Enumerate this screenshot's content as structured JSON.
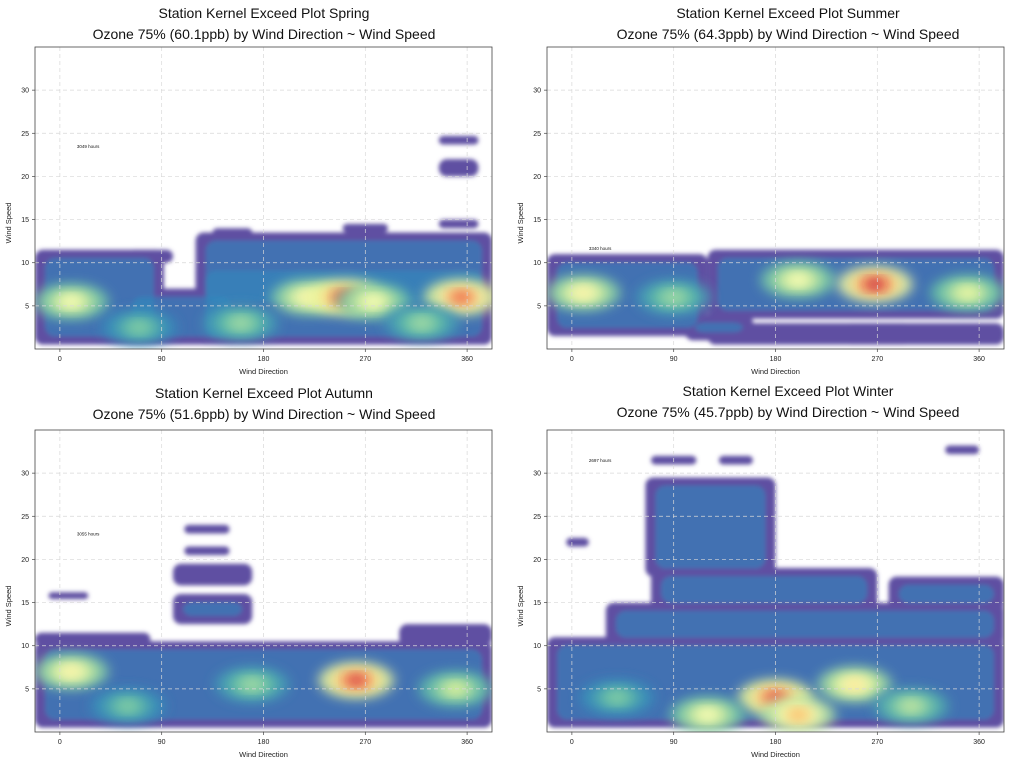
{
  "chart_data": [
    {
      "type": "heatmap",
      "title": "Station Kernel Exceed Plot Spring",
      "subtitle": "Ozone 75% (60.1ppb) by Wind Direction ~ Wind Speed",
      "xlabel": "Wind Direction",
      "ylabel": "Wind Speed",
      "xlim": [
        -22,
        382
      ],
      "ylim": [
        0,
        35
      ],
      "xticks": [
        0,
        90,
        180,
        270,
        360
      ],
      "yticks": [
        5,
        10,
        15,
        20,
        25,
        30
      ],
      "grid": true,
      "annotation": "3049 hours",
      "annotation_pos": [
        15,
        23.3
      ],
      "colorscale": [
        "#5e4fa2",
        "#3288bd",
        "#66c2a5",
        "#abdda4",
        "#e6f598",
        "#ffffbf",
        "#fee08b",
        "#fdae61",
        "#f46d43",
        "#d53e4f",
        "#9e0142"
      ],
      "coverage": [
        {
          "x": [
            -22,
            92
          ],
          "y": [
            0.5,
            11.5
          ]
        },
        {
          "x": [
            55,
            160
          ],
          "y": [
            0.5,
            7
          ]
        },
        {
          "x": [
            120,
            382
          ],
          "y": [
            0.5,
            10
          ]
        },
        {
          "x": [
            120,
            382
          ],
          "y": [
            4.5,
            13.5
          ]
        },
        {
          "x": [
            60,
            100
          ],
          "y": [
            10,
            11.5
          ]
        },
        {
          "x": [
            135,
            170
          ],
          "y": [
            13,
            14
          ]
        },
        {
          "x": [
            250,
            290
          ],
          "y": [
            13.5,
            14.5
          ]
        },
        {
          "x": [
            335,
            370
          ],
          "y": [
            14,
            15
          ]
        },
        {
          "x": [
            335,
            370
          ],
          "y": [
            20,
            22
          ]
        },
        {
          "x": [
            335,
            370
          ],
          "y": [
            23.7,
            24.7
          ]
        }
      ],
      "hotspots": [
        {
          "x": 10,
          "y": 5.5,
          "value": 0.5
        },
        {
          "x": 220,
          "y": 6,
          "value": 0.55
        },
        {
          "x": 252,
          "y": 6,
          "value": 0.92
        },
        {
          "x": 277,
          "y": 5.5,
          "value": 0.5
        },
        {
          "x": 355,
          "y": 6,
          "value": 0.85
        },
        {
          "x": 160,
          "y": 3,
          "value": 0.3
        },
        {
          "x": 320,
          "y": 3,
          "value": 0.3
        },
        {
          "x": 70,
          "y": 2.5,
          "value": 0.25
        }
      ]
    },
    {
      "type": "heatmap",
      "title": "Station Kernel Exceed Plot Summer",
      "subtitle": "Ozone 75% (64.3ppb) by Wind Direction ~ Wind Speed",
      "xlabel": "Wind Direction",
      "ylabel": "Wind Speed",
      "xlim": [
        -22,
        382
      ],
      "ylim": [
        0,
        35
      ],
      "xticks": [
        0,
        90,
        180,
        270,
        360
      ],
      "yticks": [
        5,
        10,
        15,
        20,
        25,
        30
      ],
      "grid": true,
      "annotation": "3340 hours",
      "annotation_pos": [
        15,
        11.5
      ],
      "colorscale": [
        "#5e4fa2",
        "#3288bd",
        "#66c2a5",
        "#abdda4",
        "#e6f598",
        "#ffffbf",
        "#fee08b",
        "#fdae61",
        "#f46d43",
        "#d53e4f",
        "#9e0142"
      ],
      "coverage": [
        {
          "x": [
            -22,
            120
          ],
          "y": [
            1.5,
            11
          ]
        },
        {
          "x": [
            120,
            382
          ],
          "y": [
            3.5,
            11.5
          ]
        },
        {
          "x": [
            120,
            382
          ],
          "y": [
            0.5,
            3
          ]
        },
        {
          "x": [
            100,
            160
          ],
          "y": [
            1,
            4
          ]
        },
        {
          "x": [
            240,
            300
          ],
          "y": [
            0.5,
            3
          ]
        }
      ],
      "hotspots": [
        {
          "x": 10,
          "y": 6.5,
          "value": 0.55
        },
        {
          "x": 200,
          "y": 8,
          "value": 0.5
        },
        {
          "x": 268,
          "y": 7.5,
          "value": 0.95
        },
        {
          "x": 350,
          "y": 6.5,
          "value": 0.45
        },
        {
          "x": 90,
          "y": 6,
          "value": 0.3
        }
      ]
    },
    {
      "type": "heatmap",
      "title": "Station Kernel Exceed Plot Autumn",
      "subtitle": "Ozone 75% (51.6ppb) by Wind Direction ~ Wind Speed",
      "xlabel": "Wind Direction",
      "ylabel": "Wind Speed",
      "xlim": [
        -22,
        382
      ],
      "ylim": [
        0,
        35
      ],
      "xticks": [
        0,
        90,
        180,
        270,
        360
      ],
      "yticks": [
        5,
        10,
        15,
        20,
        25,
        30
      ],
      "grid": true,
      "annotation": "3055 hours",
      "annotation_pos": [
        15,
        22.8
      ],
      "colorscale": [
        "#5e4fa2",
        "#3288bd",
        "#66c2a5",
        "#abdda4",
        "#e6f598",
        "#ffffbf",
        "#fee08b",
        "#fdae61",
        "#f46d43",
        "#d53e4f",
        "#9e0142"
      ],
      "coverage": [
        {
          "x": [
            -22,
            382
          ],
          "y": [
            0.5,
            10.5
          ]
        },
        {
          "x": [
            -22,
            80
          ],
          "y": [
            10,
            11.5
          ]
        },
        {
          "x": [
            300,
            382
          ],
          "y": [
            10,
            12.5
          ]
        },
        {
          "x": [
            100,
            170
          ],
          "y": [
            12.5,
            16
          ]
        },
        {
          "x": [
            100,
            170
          ],
          "y": [
            17,
            19.5
          ]
        },
        {
          "x": [
            110,
            150
          ],
          "y": [
            20.5,
            21.5
          ]
        },
        {
          "x": [
            110,
            150
          ],
          "y": [
            23,
            24
          ]
        },
        {
          "x": [
            -10,
            25
          ],
          "y": [
            15.4,
            16.2
          ]
        }
      ],
      "hotspots": [
        {
          "x": 10,
          "y": 7,
          "value": 0.55
        },
        {
          "x": 262,
          "y": 6,
          "value": 0.92
        },
        {
          "x": 350,
          "y": 5,
          "value": 0.4
        },
        {
          "x": 170,
          "y": 5.5,
          "value": 0.3
        },
        {
          "x": 60,
          "y": 3,
          "value": 0.25
        }
      ]
    },
    {
      "type": "heatmap",
      "title": "Station Kernel Exceed Plot Winter",
      "subtitle": "Ozone 75% (45.7ppb) by Wind Direction ~ Wind Speed",
      "xlabel": "Wind Direction",
      "ylabel": "Wind Speed",
      "xlim": [
        -22,
        382
      ],
      "ylim": [
        0,
        35
      ],
      "xticks": [
        0,
        90,
        180,
        270,
        360
      ],
      "yticks": [
        5,
        10,
        15,
        20,
        25,
        30
      ],
      "grid": true,
      "annotation": "2697 hours",
      "annotation_pos": [
        15,
        31.3
      ],
      "colorscale": [
        "#5e4fa2",
        "#3288bd",
        "#66c2a5",
        "#abdda4",
        "#e6f598",
        "#ffffbf",
        "#fee08b",
        "#fdae61",
        "#f46d43",
        "#d53e4f",
        "#9e0142"
      ],
      "coverage": [
        {
          "x": [
            -22,
            382
          ],
          "y": [
            0.5,
            11
          ]
        },
        {
          "x": [
            30,
            382
          ],
          "y": [
            10,
            15
          ]
        },
        {
          "x": [
            70,
            270
          ],
          "y": [
            14,
            19
          ]
        },
        {
          "x": [
            280,
            382
          ],
          "y": [
            14,
            18
          ]
        },
        {
          "x": [
            65,
            180
          ],
          "y": [
            18,
            29.5
          ]
        },
        {
          "x": [
            70,
            110
          ],
          "y": [
            31,
            32
          ]
        },
        {
          "x": [
            130,
            160
          ],
          "y": [
            31,
            32
          ]
        },
        {
          "x": [
            330,
            360
          ],
          "y": [
            32.2,
            33.2
          ]
        },
        {
          "x": -22,
          "y": 0
        },
        {
          "x": [
            -5,
            15
          ],
          "y": [
            21.5,
            22.5
          ]
        }
      ],
      "hotspots": [
        {
          "x": 180,
          "y": 4,
          "value": 0.9
        },
        {
          "x": 200,
          "y": 2,
          "value": 0.7
        },
        {
          "x": 250,
          "y": 5.5,
          "value": 0.6
        },
        {
          "x": 120,
          "y": 2,
          "value": 0.5
        },
        {
          "x": 300,
          "y": 3,
          "value": 0.35
        },
        {
          "x": 40,
          "y": 4,
          "value": 0.25
        }
      ]
    }
  ]
}
